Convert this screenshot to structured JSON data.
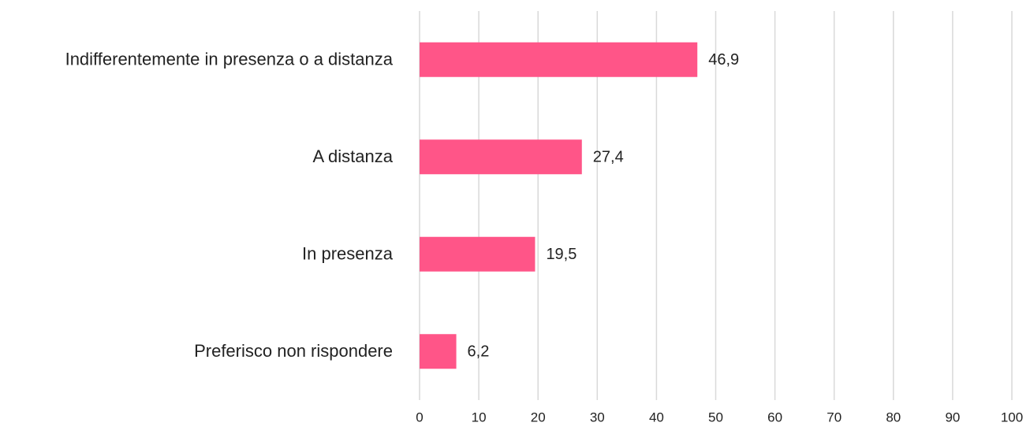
{
  "chart_data": {
    "type": "bar",
    "orientation": "horizontal",
    "categories": [
      "Indifferentemente in presenza o a distanza",
      "A distanza",
      "In presenza",
      "Preferisco non rispondere"
    ],
    "values": [
      46.9,
      27.4,
      19.5,
      6.2
    ],
    "value_labels": [
      "46,9",
      "27,4",
      "19,5",
      "6,2"
    ],
    "color": "#ff5588",
    "xlim": [
      0,
      100
    ],
    "xticks": [
      0,
      10,
      20,
      30,
      40,
      50,
      60,
      70,
      80,
      90,
      100
    ],
    "grid": true
  }
}
